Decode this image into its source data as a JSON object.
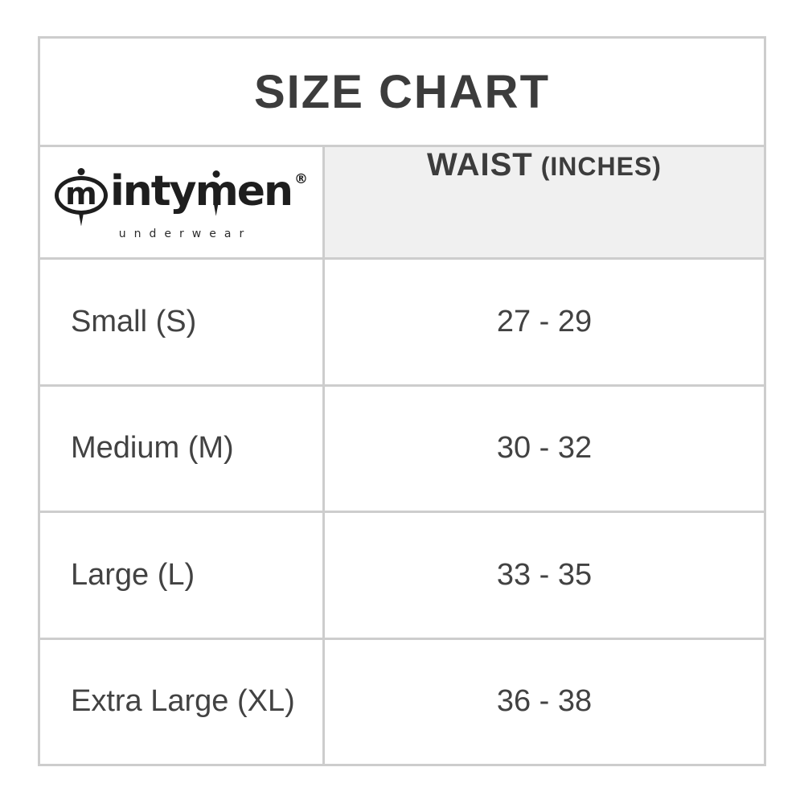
{
  "title": "SIZE CHART",
  "brand": {
    "mark_letter": "m",
    "name_start": "inty",
    "name_m": "m",
    "name_end": "en",
    "registered": "®",
    "subtitle": "underwear"
  },
  "header": {
    "waist_label": "WAIST",
    "waist_unit": "(INCHES)"
  },
  "rows": [
    {
      "size": "Small (S)",
      "waist": "27 - 29"
    },
    {
      "size": "Medium (M)",
      "waist": "30 - 32"
    },
    {
      "size": "Large (L)",
      "waist": "33 - 35"
    },
    {
      "size": "Extra Large (XL)",
      "waist": "36 - 38"
    }
  ],
  "colors": {
    "border": "#cdcdcd",
    "header_background": "#f0f0f0",
    "text": "#3c3c3c",
    "logo_black": "#1e1e1e"
  },
  "chart_data": {
    "type": "table",
    "title": "SIZE CHART",
    "column_headers": [
      "intymen underwear (brand logo)",
      "WAIST (INCHES)"
    ],
    "rows": [
      [
        "Small (S)",
        "27 - 29"
      ],
      [
        "Medium (M)",
        "30 - 32"
      ],
      [
        "Large (L)",
        "33 - 35"
      ],
      [
        "Extra Large (XL)",
        "36 - 38"
      ]
    ],
    "waist_ranges_inches": [
      [
        27,
        29
      ],
      [
        30,
        32
      ],
      [
        33,
        35
      ],
      [
        36,
        38
      ]
    ]
  }
}
